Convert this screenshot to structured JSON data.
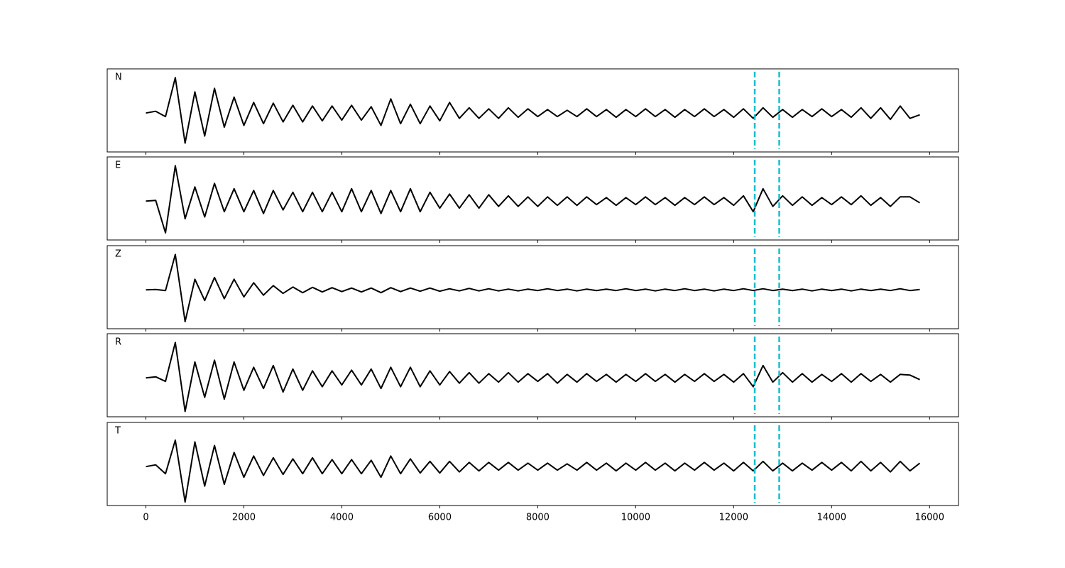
{
  "chart_data": [
    {
      "type": "line",
      "label": "N",
      "color": "#000000",
      "vlines": [
        12430,
        12930
      ],
      "vline_color": "#17becf",
      "xlim": [
        -790,
        16590
      ],
      "ylim": [
        -1.1,
        1.25
      ],
      "x": [
        0,
        200,
        400,
        600,
        800,
        1000,
        1200,
        1400,
        1600,
        1800,
        2000,
        2200,
        2400,
        2600,
        2800,
        3000,
        3200,
        3400,
        3600,
        3800,
        4000,
        4200,
        4400,
        4600,
        4800,
        5000,
        5200,
        5400,
        5600,
        5800,
        6000,
        6200,
        6400,
        6600,
        6800,
        7000,
        7200,
        7400,
        7600,
        7800,
        8000,
        8200,
        8400,
        8600,
        8800,
        9000,
        9200,
        9400,
        9600,
        9800,
        10000,
        10200,
        10400,
        10600,
        10800,
        11000,
        11200,
        11400,
        11600,
        11800,
        12000,
        12200,
        12400,
        12600,
        12800,
        13000,
        13200,
        13400,
        13600,
        13800,
        14000,
        14200,
        14400,
        14600,
        14800,
        15000,
        15200,
        15400,
        15600,
        15800
      ],
      "values": [
        0,
        0.05,
        -0.1,
        1.0,
        -0.85,
        0.6,
        -0.65,
        0.7,
        -0.4,
        0.45,
        -0.35,
        0.3,
        -0.3,
        0.28,
        -0.25,
        0.22,
        -0.25,
        0.2,
        -0.22,
        0.2,
        -0.2,
        0.22,
        -0.2,
        0.18,
        -0.35,
        0.4,
        -0.3,
        0.25,
        -0.3,
        0.2,
        -0.22,
        0.3,
        -0.15,
        0.15,
        -0.15,
        0.12,
        -0.15,
        0.15,
        -0.12,
        0.12,
        -0.1,
        0.1,
        -0.1,
        0.08,
        -0.1,
        0.12,
        -0.1,
        0.1,
        -0.12,
        0.1,
        -0.1,
        0.12,
        -0.1,
        0.1,
        -0.12,
        0.1,
        -0.1,
        0.12,
        -0.1,
        0.1,
        -0.12,
        0.12,
        -0.15,
        0.15,
        -0.12,
        0.1,
        -0.12,
        0.1,
        -0.1,
        0.12,
        -0.1,
        0.1,
        -0.12,
        0.15,
        -0.15,
        0.15,
        -0.18,
        0.2,
        -0.15,
        -0.05
      ]
    },
    {
      "type": "line",
      "label": "E",
      "color": "#000000",
      "vlines": [
        12430,
        12930
      ],
      "vline_color": "#17becf",
      "xlim": [
        -790,
        16590
      ],
      "ylim": [
        -1.1,
        1.25
      ],
      "x": [
        0,
        200,
        400,
        600,
        800,
        1000,
        1200,
        1400,
        1600,
        1800,
        2000,
        2200,
        2400,
        2600,
        2800,
        3000,
        3200,
        3400,
        3600,
        3800,
        4000,
        4200,
        4400,
        4600,
        4800,
        5000,
        5200,
        5400,
        5600,
        5800,
        6000,
        6200,
        6400,
        6600,
        6800,
        7000,
        7200,
        7400,
        7600,
        7800,
        8000,
        8200,
        8400,
        8600,
        8800,
        9000,
        9200,
        9400,
        9600,
        9800,
        10000,
        10200,
        10400,
        10600,
        10800,
        11000,
        11200,
        11400,
        11600,
        11800,
        12000,
        12200,
        12400,
        12600,
        12800,
        13000,
        13200,
        13400,
        13600,
        13800,
        14000,
        14200,
        14400,
        14600,
        14800,
        15000,
        15200,
        15400,
        15600,
        15800
      ],
      "values": [
        0,
        0.02,
        -0.9,
        1.0,
        -0.5,
        0.4,
        -0.45,
        0.5,
        -0.3,
        0.35,
        -0.3,
        0.3,
        -0.35,
        0.3,
        -0.25,
        0.25,
        -0.3,
        0.25,
        -0.3,
        0.25,
        -0.3,
        0.35,
        -0.3,
        0.3,
        -0.35,
        0.3,
        -0.3,
        0.35,
        -0.3,
        0.25,
        -0.2,
        0.2,
        -0.2,
        0.18,
        -0.2,
        0.18,
        -0.15,
        0.15,
        -0.15,
        0.12,
        -0.15,
        0.12,
        -0.12,
        0.12,
        -0.12,
        0.12,
        -0.1,
        0.1,
        -0.12,
        0.1,
        -0.1,
        0.12,
        -0.1,
        0.1,
        -0.12,
        0.1,
        -0.1,
        0.12,
        -0.1,
        0.1,
        -0.12,
        0.15,
        -0.3,
        0.35,
        -0.15,
        0.15,
        -0.12,
        0.12,
        -0.12,
        0.1,
        -0.1,
        0.12,
        -0.1,
        0.15,
        -0.12,
        0.1,
        -0.15,
        0.12,
        0.12,
        -0.05
      ]
    },
    {
      "type": "line",
      "label": "Z",
      "color": "#000000",
      "vlines": [
        12430,
        12930
      ],
      "vline_color": "#17becf",
      "xlim": [
        -790,
        16590
      ],
      "ylim": [
        -1.1,
        1.25
      ],
      "x": [
        0,
        200,
        400,
        600,
        800,
        1000,
        1200,
        1400,
        1600,
        1800,
        2000,
        2200,
        2400,
        2600,
        2800,
        3000,
        3200,
        3400,
        3600,
        3800,
        4000,
        4200,
        4400,
        4600,
        4800,
        5000,
        5200,
        5400,
        5600,
        5800,
        6000,
        6200,
        6400,
        6600,
        6800,
        7000,
        7200,
        7400,
        7600,
        7800,
        8000,
        8200,
        8400,
        8600,
        8800,
        9000,
        9200,
        9400,
        9600,
        9800,
        10000,
        10200,
        10400,
        10600,
        10800,
        11000,
        11200,
        11400,
        11600,
        11800,
        12000,
        12200,
        12400,
        12600,
        12800,
        13000,
        13200,
        13400,
        13600,
        13800,
        14000,
        14200,
        14400,
        14600,
        14800,
        15000,
        15200,
        15400,
        15600,
        15800
      ],
      "values": [
        0,
        0.01,
        -0.02,
        1.0,
        -0.9,
        0.3,
        -0.3,
        0.35,
        -0.25,
        0.3,
        -0.2,
        0.2,
        -0.15,
        0.12,
        -0.1,
        0.08,
        -0.08,
        0.07,
        -0.06,
        0.06,
        -0.05,
        0.05,
        -0.06,
        0.05,
        -0.08,
        0.06,
        -0.05,
        0.05,
        -0.04,
        0.05,
        -0.04,
        0.03,
        -0.03,
        0.04,
        -0.03,
        0.03,
        -0.03,
        0.02,
        -0.03,
        0.02,
        -0.02,
        0.03,
        -0.02,
        0.02,
        -0.03,
        0.02,
        -0.02,
        0.02,
        -0.02,
        0.03,
        -0.02,
        0.02,
        -0.03,
        0.02,
        -0.02,
        0.03,
        -0.02,
        0.02,
        -0.03,
        0.02,
        -0.02,
        0.03,
        -0.02,
        0.03,
        -0.02,
        0.02,
        -0.02,
        0.02,
        -0.03,
        0.02,
        -0.02,
        0.02,
        -0.03,
        0.02,
        -0.02,
        0.02,
        -0.02,
        0.03,
        -0.02,
        0.01
      ]
    },
    {
      "type": "line",
      "label": "R",
      "color": "#000000",
      "vlines": [
        12430,
        12930
      ],
      "vline_color": "#17becf",
      "xlim": [
        -790,
        16590
      ],
      "ylim": [
        -1.1,
        1.25
      ],
      "x": [
        0,
        200,
        400,
        600,
        800,
        1000,
        1200,
        1400,
        1600,
        1800,
        2000,
        2200,
        2400,
        2600,
        2800,
        3000,
        3200,
        3400,
        3600,
        3800,
        4000,
        4200,
        4400,
        4600,
        4800,
        5000,
        5200,
        5400,
        5600,
        5800,
        6000,
        6200,
        6400,
        6600,
        6800,
        7000,
        7200,
        7400,
        7600,
        7800,
        8000,
        8200,
        8400,
        8600,
        8800,
        9000,
        9200,
        9400,
        9600,
        9800,
        10000,
        10200,
        10400,
        10600,
        10800,
        11000,
        11200,
        11400,
        11600,
        11800,
        12000,
        12200,
        12400,
        12600,
        12800,
        13000,
        13200,
        13400,
        13600,
        13800,
        14000,
        14200,
        14400,
        14600,
        14800,
        15000,
        15200,
        15400,
        15600,
        15800
      ],
      "values": [
        0,
        0.03,
        -0.1,
        1.0,
        -0.95,
        0.45,
        -0.55,
        0.5,
        -0.6,
        0.45,
        -0.35,
        0.3,
        -0.3,
        0.35,
        -0.4,
        0.25,
        -0.35,
        0.2,
        -0.25,
        0.2,
        -0.2,
        0.22,
        -0.2,
        0.25,
        -0.3,
        0.3,
        -0.25,
        0.3,
        -0.25,
        0.2,
        -0.2,
        0.18,
        -0.15,
        0.15,
        -0.15,
        0.12,
        -0.12,
        0.15,
        -0.12,
        0.12,
        -0.1,
        0.12,
        -0.15,
        0.1,
        -0.12,
        0.12,
        -0.1,
        0.1,
        -0.12,
        0.1,
        -0.1,
        0.12,
        -0.1,
        0.1,
        -0.12,
        0.1,
        -0.1,
        0.12,
        -0.1,
        0.1,
        -0.12,
        0.12,
        -0.25,
        0.35,
        -0.12,
        0.15,
        -0.12,
        0.12,
        -0.12,
        0.1,
        -0.1,
        0.12,
        -0.12,
        0.12,
        -0.1,
        0.1,
        -0.12,
        0.1,
        0.08,
        -0.05
      ]
    },
    {
      "type": "line",
      "label": "T",
      "color": "#000000",
      "vlines": [
        12430,
        12930
      ],
      "vline_color": "#17becf",
      "xlim": [
        -790,
        16590
      ],
      "ylim": [
        -1.1,
        1.25
      ],
      "xticks": [
        0,
        2000,
        4000,
        6000,
        8000,
        10000,
        12000,
        14000,
        16000
      ],
      "x": [
        0,
        200,
        400,
        600,
        800,
        1000,
        1200,
        1400,
        1600,
        1800,
        2000,
        2200,
        2400,
        2600,
        2800,
        3000,
        3200,
        3400,
        3600,
        3800,
        4000,
        4200,
        4400,
        4600,
        4800,
        5000,
        5200,
        5400,
        5600,
        5800,
        6000,
        6200,
        6400,
        6600,
        6800,
        7000,
        7200,
        7400,
        7600,
        7800,
        8000,
        8200,
        8400,
        8600,
        8800,
        9000,
        9200,
        9400,
        9600,
        9800,
        10000,
        10200,
        10400,
        10600,
        10800,
        11000,
        11200,
        11400,
        11600,
        11800,
        12000,
        12200,
        12400,
        12600,
        12800,
        13000,
        13200,
        13400,
        13600,
        13800,
        14000,
        14200,
        14400,
        14600,
        14800,
        15000,
        15200,
        15400,
        15600,
        15800
      ],
      "values": [
        0,
        0.05,
        -0.2,
        0.75,
        -1.0,
        0.7,
        -0.55,
        0.6,
        -0.5,
        0.4,
        -0.3,
        0.3,
        -0.25,
        0.25,
        -0.22,
        0.22,
        -0.2,
        0.25,
        -0.2,
        0.2,
        -0.2,
        0.2,
        -0.2,
        0.18,
        -0.3,
        0.3,
        -0.2,
        0.22,
        -0.18,
        0.15,
        -0.18,
        0.15,
        -0.15,
        0.12,
        -0.12,
        0.12,
        -0.1,
        0.12,
        -0.1,
        0.1,
        -0.1,
        0.1,
        -0.1,
        0.08,
        -0.1,
        0.12,
        -0.1,
        0.1,
        -0.12,
        0.1,
        -0.1,
        0.12,
        -0.1,
        0.1,
        -0.12,
        0.1,
        -0.1,
        0.12,
        -0.1,
        0.1,
        -0.12,
        0.12,
        -0.12,
        0.15,
        -0.12,
        0.1,
        -0.12,
        0.1,
        -0.1,
        0.12,
        -0.1,
        0.12,
        -0.12,
        0.15,
        -0.12,
        0.12,
        -0.15,
        0.15,
        -0.12,
        0.1
      ]
    }
  ]
}
